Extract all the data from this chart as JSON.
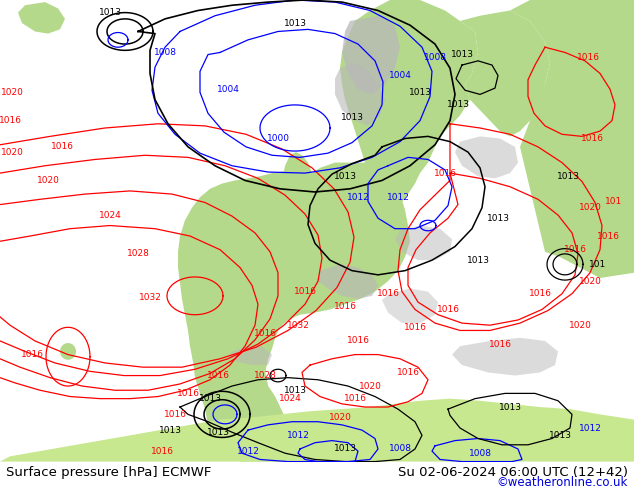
{
  "fig_width": 6.34,
  "fig_height": 4.9,
  "dpi": 100,
  "background_color": "#ffffff",
  "sea_color": "#e8e8e8",
  "land_color_green": "#b4d98a",
  "land_color_light": "#c8e8a0",
  "gray_color": "#b8b8b8",
  "footer_left": "Surface pressure [hPa] ECMWF",
  "footer_right": "Su 02-06-2024 06:00 UTC (12+42)",
  "footer_link": "©weatheronline.co.uk",
  "footer_color": "#000000",
  "footer_link_color": "#0000dd",
  "footer_fontsize": 9.5,
  "footer_link_fontsize": 8.5,
  "red_color": "#ff0000",
  "blue_color": "#0000ff",
  "black_color": "#000000",
  "lw_contour": 0.9,
  "label_fontsize": 6.5
}
